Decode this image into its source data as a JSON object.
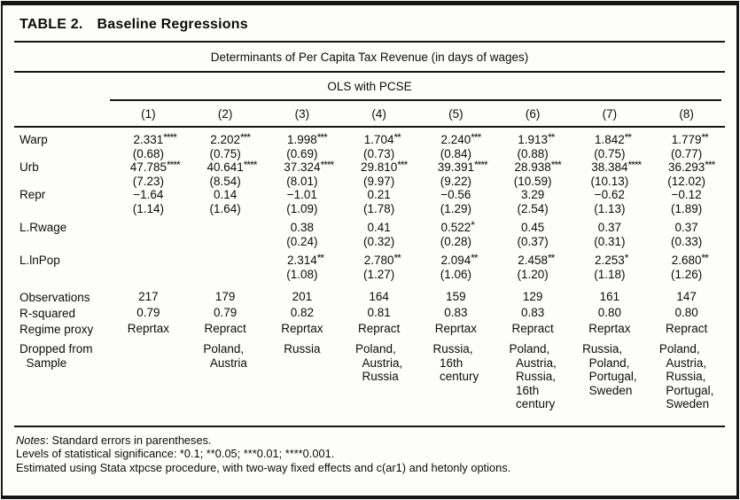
{
  "table": {
    "title_prefix": "TABLE 2.",
    "title": "Baseline Regressions",
    "subtitle": "Determinants of Per Capita Tax Revenue (in days of wages)",
    "method_header": "OLS with PCSE",
    "column_headers": [
      "(1)",
      "(2)",
      "(3)",
      "(4)",
      "(5)",
      "(6)",
      "(7)",
      "(8)"
    ],
    "coef_rows": [
      {
        "label": "Warp",
        "cells": [
          {
            "v": "2.331",
            "stars": "****",
            "se": "(0.68)"
          },
          {
            "v": "2.202",
            "stars": "***",
            "se": "(0.75)"
          },
          {
            "v": "1.998",
            "stars": "***",
            "se": "(0.69)"
          },
          {
            "v": "1.704",
            "stars": "**",
            "se": "(0.73)"
          },
          {
            "v": "2.240",
            "stars": "***",
            "se": "(0.84)"
          },
          {
            "v": "1.913",
            "stars": "**",
            "se": "(0.88)"
          },
          {
            "v": "1.842",
            "stars": "**",
            "se": "(0.75)"
          },
          {
            "v": "1.779",
            "stars": "**",
            "se": "(0.77)"
          }
        ]
      },
      {
        "label": "Urb",
        "cells": [
          {
            "v": "47.785",
            "stars": "****",
            "se": "(7.23)"
          },
          {
            "v": "40.641",
            "stars": "****",
            "se": "(8.54)"
          },
          {
            "v": "37.324",
            "stars": "****",
            "se": "(8.01)"
          },
          {
            "v": "29.810",
            "stars": "***",
            "se": "(9.97)"
          },
          {
            "v": "39.391",
            "stars": "****",
            "se": "(9.22)"
          },
          {
            "v": "28.938",
            "stars": "***",
            "se": "(10.59)"
          },
          {
            "v": "38.384",
            "stars": "****",
            "se": "(10.13)"
          },
          {
            "v": "36.293",
            "stars": "***",
            "se": "(12.02)"
          }
        ]
      },
      {
        "label": "Repr",
        "cells": [
          {
            "v": "−1.64",
            "stars": "",
            "se": "(1.14)"
          },
          {
            "v": "0.14",
            "stars": "",
            "se": "(1.64)"
          },
          {
            "v": "−1.01",
            "stars": "",
            "se": "(1.09)"
          },
          {
            "v": "0.21",
            "stars": "",
            "se": "(1.78)"
          },
          {
            "v": "−0.56",
            "stars": "",
            "se": "(1.29)"
          },
          {
            "v": "3.29",
            "stars": "",
            "se": "(2.54)"
          },
          {
            "v": "−0.62",
            "stars": "",
            "se": "(1.13)"
          },
          {
            "v": "−0.12",
            "stars": "",
            "se": "(1.89)"
          }
        ]
      },
      {
        "label": "L.Rwage",
        "cells": [
          {
            "v": "",
            "stars": "",
            "se": ""
          },
          {
            "v": "",
            "stars": "",
            "se": ""
          },
          {
            "v": "0.38",
            "stars": "",
            "se": "(0.24)"
          },
          {
            "v": "0.41",
            "stars": "",
            "se": "(0.32)"
          },
          {
            "v": "0.522",
            "stars": "*",
            "se": "(0.28)"
          },
          {
            "v": "0.45",
            "stars": "",
            "se": "(0.37)"
          },
          {
            "v": "0.37",
            "stars": "",
            "se": "(0.31)"
          },
          {
            "v": "0.37",
            "stars": "",
            "se": "(0.33)"
          }
        ]
      },
      {
        "label": "L.lnPop",
        "cells": [
          {
            "v": "",
            "stars": "",
            "se": ""
          },
          {
            "v": "",
            "stars": "",
            "se": ""
          },
          {
            "v": "2.314",
            "stars": "**",
            "se": "(1.08)"
          },
          {
            "v": "2.780",
            "stars": "**",
            "se": "(1.27)"
          },
          {
            "v": "2.094",
            "stars": "**",
            "se": "(1.06)"
          },
          {
            "v": "2.458",
            "stars": "**",
            "se": "(1.20)"
          },
          {
            "v": "2.253",
            "stars": "*",
            "se": "(1.18)"
          },
          {
            "v": "2.680",
            "stars": "**",
            "se": "(1.26)"
          }
        ]
      }
    ],
    "stat_rows": [
      {
        "label": "Observations",
        "values": [
          "217",
          "179",
          "201",
          "164",
          "159",
          "129",
          "161",
          "147"
        ]
      },
      {
        "label": "R-squared",
        "values": [
          "0.79",
          "0.79",
          "0.82",
          "0.81",
          "0.83",
          "0.83",
          "0.80",
          "0.80"
        ]
      },
      {
        "label": "Regime proxy",
        "values": [
          "Reprtax",
          "Repract",
          "Reprtax",
          "Repract",
          "Reprtax",
          "Repract",
          "Reprtax",
          "Repract"
        ]
      }
    ],
    "dropped_row": {
      "label": "Dropped from\n  Sample",
      "values": [
        "",
        "Poland,\n  Austria",
        "Russia",
        "Poland,\n  Austria,\n  Russia",
        "Russia,\n  16th\n  century",
        "Poland,\n  Austria,\n  Russia,\n  16th\n  century",
        "Russia,\n  Poland,\n  Portugal,\n  Sweden",
        "Poland,\n  Austria,\n  Russia,\n  Portugal,\n  Sweden"
      ]
    },
    "notes": {
      "line1_label": "Notes",
      "line1_rest": ": Standard errors in parentheses.",
      "line2": "Levels of statistical significance: *0.1; **0.05; ***0.01; ****0.001.",
      "line3": "Estimated using Stata xtpcse procedure, with two-way fixed effects and c(ar1) and hetonly options."
    }
  }
}
